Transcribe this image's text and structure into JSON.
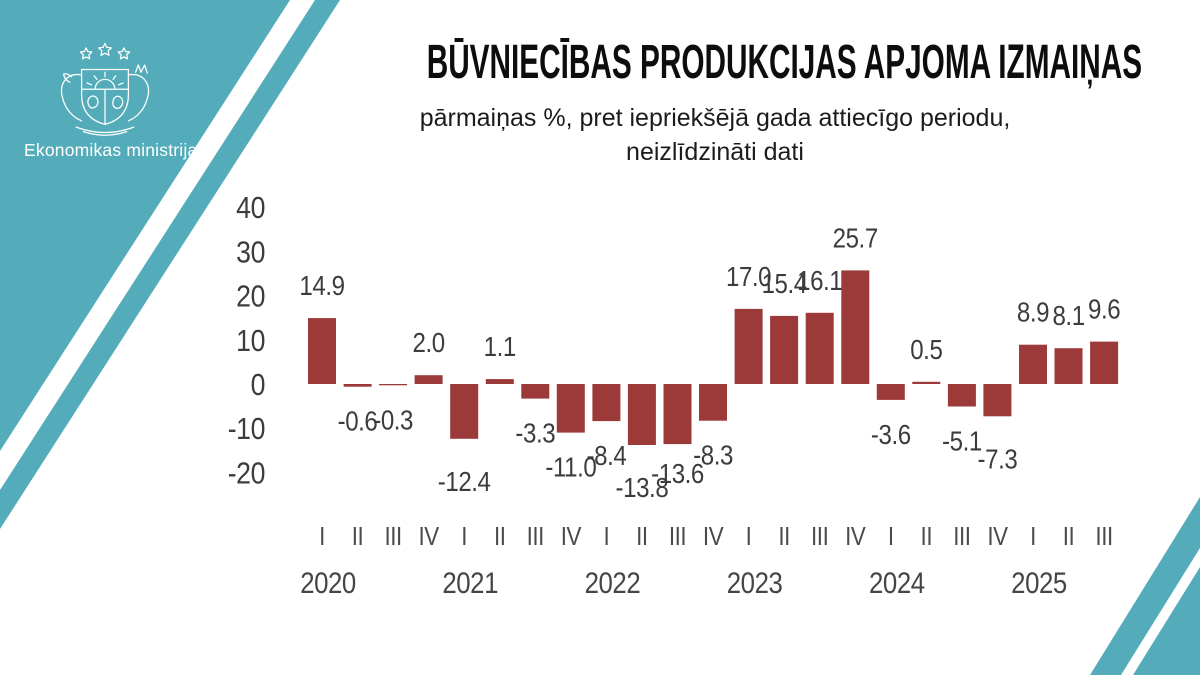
{
  "page": {
    "accent_teal": "#54ACBA",
    "background": "#ffffff"
  },
  "logo": {
    "ministry_name": "Ekonomikas ministrija",
    "emblem": "latvian-coat-of-arms"
  },
  "header": {
    "title": "BŪVNIECĪBAS PRODUKCIJAS APJOMA IZMAIŅAS",
    "subtitle_line1": "pārmaiņas %, pret iepriekšējā gada attiecīgo periodu,",
    "subtitle_line2": "neizlīdzināti dati"
  },
  "chart_data": {
    "type": "bar",
    "title": "BŪVNIECĪBAS PRODUKCIJAS APJOMA IZMAIŅAS",
    "subtitle": "pārmaiņas %, pret iepriekšējā gada attiecīgo periodu, neizlīdzināti dati",
    "xlabel": "",
    "ylabel": "",
    "ylim": [
      -20,
      40
    ],
    "yticks": [
      40,
      30,
      20,
      10,
      0,
      -10,
      -20
    ],
    "grid": false,
    "legend": null,
    "bar_color": "#9C3939",
    "tick_color": "#3C3C3C",
    "value_label_color": "#3C3C3C",
    "axis_label_color": "#4A4A4A",
    "categories": [
      "I",
      "II",
      "III",
      "IV",
      "I",
      "II",
      "III",
      "IV",
      "I",
      "II",
      "III",
      "IV",
      "I",
      "II",
      "III",
      "IV",
      "I",
      "II",
      "III",
      "IV",
      "I",
      "II",
      "III"
    ],
    "year_groups": [
      {
        "year": "2020",
        "start": 0,
        "count": 4
      },
      {
        "year": "2021",
        "start": 4,
        "count": 4
      },
      {
        "year": "2022",
        "start": 8,
        "count": 4
      },
      {
        "year": "2023",
        "start": 12,
        "count": 4
      },
      {
        "year": "2024",
        "start": 16,
        "count": 4
      },
      {
        "year": "2025",
        "start": 20,
        "count": 3
      }
    ],
    "values": [
      14.9,
      -0.6,
      -0.3,
      2.0,
      -12.4,
      1.1,
      -3.3,
      -11.0,
      -8.4,
      -13.8,
      -13.6,
      -8.3,
      17.0,
      15.4,
      16.1,
      25.7,
      -3.6,
      0.5,
      -5.1,
      -7.3,
      8.9,
      8.1,
      9.6
    ],
    "labels": [
      "14.9",
      "-0.6",
      "-0.3",
      "2.0",
      "-12.4",
      "1.1",
      "-3.3",
      "-11.0",
      "-8.4",
      "-13.8",
      "-13.6",
      "-8.3",
      "17.0",
      "15.4",
      "16.1",
      "25.7",
      "-3.6",
      "0.5",
      "-5.1",
      "-7.3",
      "8.9",
      "8.1",
      "9.6"
    ],
    "label_dy": {
      "4": 8,
      "9": 8,
      "10": -5,
      "19": 8
    }
  }
}
